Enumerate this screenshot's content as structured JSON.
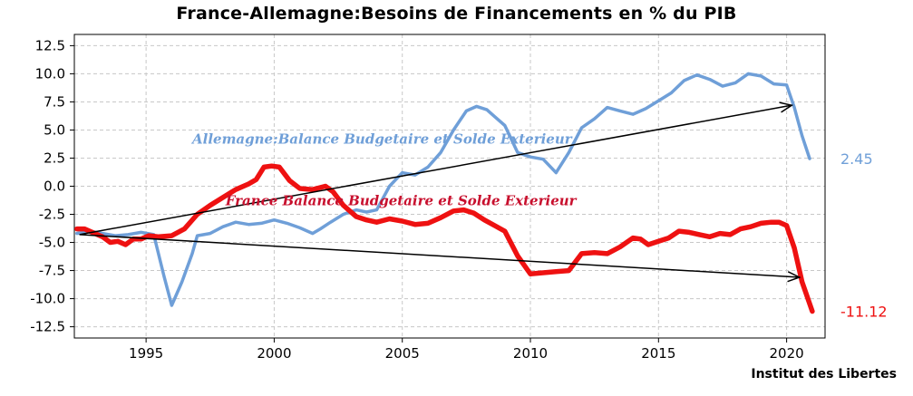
{
  "chart_data": {
    "type": "line",
    "title": "France-Allemagne:Besoins de Financements en % du PIB",
    "source": "Institut des Libertes",
    "xlim": [
      1992.2,
      2021.5
    ],
    "ylim": [
      -13.5,
      13.5
    ],
    "yticks": [
      12.5,
      10.0,
      7.5,
      5.0,
      2.5,
      0.0,
      -2.5,
      -5.0,
      -7.5,
      -10.0,
      -12.5
    ],
    "ytick_labels": [
      "12.5",
      "10.0",
      "7.5",
      "5.0",
      "2.5",
      "0.0",
      "-2.5",
      "-5.0",
      "-7.5",
      "-10.0",
      "-12.5"
    ],
    "xticks": [
      1995,
      2000,
      2005,
      2010,
      2015,
      2020
    ],
    "xtick_labels": [
      "1995",
      "2000",
      "2005",
      "2010",
      "2015",
      "2020"
    ],
    "grid": true,
    "series": [
      {
        "name": "Allemagne:Balance Budgetaire et Solde Exterieur",
        "color": "#6f9fd8",
        "end_label": "2.45",
        "x": [
          1992.3,
          1992.8,
          1993.3,
          1993.8,
          1994.3,
          1994.8,
          1995.3,
          1995.7,
          1996.0,
          1996.4,
          1996.8,
          1997.0,
          1997.5,
          1998.0,
          1998.5,
          1999.0,
          1999.5,
          2000.0,
          2000.5,
          2001.0,
          2001.5,
          2001.8,
          2002.2,
          2002.7,
          2003.2,
          2003.6,
          2004.0,
          2004.5,
          2005.0,
          2005.5,
          2006.0,
          2006.5,
          2007.0,
          2007.5,
          2007.9,
          2008.3,
          2008.7,
          2009.0,
          2009.5,
          2010.0,
          2010.5,
          2011.0,
          2011.5,
          2012.0,
          2012.5,
          2013.0,
          2013.5,
          2014.0,
          2014.5,
          2015.0,
          2015.5,
          2016.0,
          2016.5,
          2017.0,
          2017.5,
          2018.0,
          2018.5,
          2019.0,
          2019.5,
          2020.0,
          2020.3,
          2020.6,
          2020.9
        ],
        "values": [
          -4.2,
          -4.0,
          -4.2,
          -4.4,
          -4.3,
          -4.1,
          -4.3,
          -8.0,
          -10.6,
          -8.5,
          -6.0,
          -4.4,
          -4.2,
          -3.6,
          -3.2,
          -3.4,
          -3.3,
          -3.0,
          -3.3,
          -3.7,
          -4.2,
          -3.8,
          -3.2,
          -2.5,
          -2.1,
          -2.3,
          -2.1,
          0.0,
          1.2,
          1.0,
          1.7,
          3.0,
          5.0,
          6.7,
          7.1,
          6.8,
          6.0,
          5.4,
          3.0,
          2.6,
          2.4,
          1.2,
          3.0,
          5.2,
          6.0,
          7.0,
          6.7,
          6.4,
          6.9,
          7.6,
          8.3,
          9.4,
          9.9,
          9.5,
          8.9,
          9.2,
          10.0,
          9.8,
          9.1,
          9.0,
          7.0,
          4.5,
          2.45
        ]
      },
      {
        "name": "France Balance Budgetaire et Solde Exterieur",
        "color": "#ee1111",
        "end_label": "-11.12",
        "x": [
          1992.3,
          1992.6,
          1993.0,
          1993.3,
          1993.6,
          1993.9,
          1994.2,
          1994.5,
          1994.8,
          1995.1,
          1995.5,
          1996.0,
          1996.5,
          1997.0,
          1997.5,
          1998.0,
          1998.5,
          1999.0,
          1999.3,
          1999.6,
          1999.9,
          2000.2,
          2000.6,
          2001.0,
          2001.5,
          2002.0,
          2002.3,
          2002.7,
          2003.2,
          2003.6,
          2004.0,
          2004.5,
          2005.0,
          2005.5,
          2006.0,
          2006.5,
          2007.0,
          2007.4,
          2007.8,
          2008.2,
          2008.6,
          2009.0,
          2009.5,
          2010.0,
          2010.5,
          2011.0,
          2011.5,
          2012.0,
          2012.5,
          2013.0,
          2013.5,
          2014.0,
          2014.3,
          2014.6,
          2015.0,
          2015.4,
          2015.8,
          2016.2,
          2016.6,
          2017.0,
          2017.4,
          2017.8,
          2018.2,
          2018.6,
          2019.0,
          2019.4,
          2019.7,
          2020.0,
          2020.3,
          2020.6,
          2021.0
        ],
        "values": [
          -3.8,
          -3.8,
          -4.2,
          -4.5,
          -5.0,
          -4.9,
          -5.2,
          -4.7,
          -4.7,
          -4.4,
          -4.5,
          -4.4,
          -3.8,
          -2.5,
          -1.7,
          -1.0,
          -0.3,
          0.2,
          0.6,
          1.7,
          1.8,
          1.7,
          0.5,
          -0.2,
          -0.3,
          0.0,
          -0.5,
          -1.7,
          -2.7,
          -3.0,
          -3.2,
          -2.9,
          -3.1,
          -3.4,
          -3.3,
          -2.8,
          -2.2,
          -2.1,
          -2.4,
          -3.0,
          -3.5,
          -4.0,
          -6.2,
          -7.8,
          -7.7,
          -7.6,
          -7.5,
          -6.0,
          -5.9,
          -6.0,
          -5.4,
          -4.6,
          -4.7,
          -5.2,
          -4.9,
          -4.6,
          -4.0,
          -4.1,
          -4.3,
          -4.5,
          -4.2,
          -4.3,
          -3.8,
          -3.6,
          -3.3,
          -3.2,
          -3.2,
          -3.5,
          -5.5,
          -8.5,
          -11.12
        ]
      }
    ],
    "annotations": [
      {
        "text": "Allemagne:Balance Budgetaire et Solde Exterieur",
        "x": 1996.8,
        "y": 3.8,
        "color": "#6f9fd8"
      },
      {
        "text": "France Balance Budgetaire et Solde Exterieur",
        "x": 1998.1,
        "y": -1.7,
        "color": "#c8102e"
      }
    ],
    "arrows": [
      {
        "from": [
          1992.4,
          -4.3
        ],
        "to": [
          2020.2,
          7.2
        ]
      },
      {
        "from": [
          1992.4,
          -4.3
        ],
        "to": [
          2020.5,
          -8.1
        ]
      }
    ]
  }
}
